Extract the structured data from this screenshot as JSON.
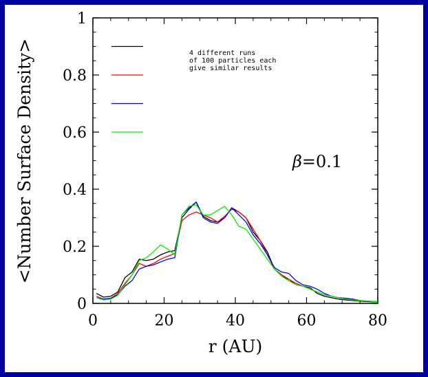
{
  "colors": {
    "border": "#0000a0",
    "background": "#ffffff"
  },
  "chart_data": {
    "type": "line",
    "title": "",
    "xlabel": "r (AU)",
    "ylabel": "<Number Surface Density>",
    "xlim": [
      0,
      80
    ],
    "ylim": [
      0,
      1
    ],
    "xticks": [
      0,
      20,
      40,
      60,
      80
    ],
    "yticks": [
      0,
      0.2,
      0.4,
      0.6,
      0.8,
      1
    ],
    "xtick_labels": [
      "0",
      "20",
      "40",
      "60",
      "80"
    ],
    "ytick_labels": [
      "0",
      "0.2",
      "0.4",
      "0.6",
      "0.8",
      "1"
    ],
    "grid": false,
    "legend_position": "top-left",
    "legend_note": [
      "4 different runs",
      "of 100 particles each",
      "give similar results"
    ],
    "annotation": {
      "symbol": "β",
      "text": "=0.1"
    },
    "x": [
      1,
      3,
      5,
      7,
      9,
      11,
      13,
      15,
      17,
      19,
      21,
      23,
      25,
      27,
      29,
      31,
      33,
      35,
      37,
      39,
      41,
      43,
      45,
      47,
      49,
      51,
      53,
      55,
      57,
      59,
      61,
      63,
      65,
      67,
      69,
      71,
      73,
      75,
      77,
      79,
      80
    ],
    "series": [
      {
        "color": "#000000",
        "values": [
          0.035,
          0.022,
          0.025,
          0.04,
          0.09,
          0.11,
          0.155,
          0.15,
          0.155,
          0.17,
          0.18,
          0.185,
          0.3,
          0.33,
          0.355,
          0.305,
          0.29,
          0.285,
          0.3,
          0.335,
          0.32,
          0.3,
          0.25,
          0.22,
          0.18,
          0.12,
          0.1,
          0.08,
          0.07,
          0.06,
          0.055,
          0.035,
          0.025,
          0.02,
          0.015,
          0.012,
          0.01,
          0.008,
          0.006,
          0.005,
          0.005
        ]
      },
      {
        "color": "#ff0000",
        "values": [
          0.025,
          0.015,
          0.018,
          0.035,
          0.07,
          0.1,
          0.14,
          0.13,
          0.14,
          0.155,
          0.165,
          0.175,
          0.29,
          0.31,
          0.32,
          0.31,
          0.3,
          0.285,
          0.305,
          0.33,
          0.32,
          0.3,
          0.26,
          0.22,
          0.17,
          0.12,
          0.1,
          0.085,
          0.07,
          0.06,
          0.05,
          0.04,
          0.03,
          0.025,
          0.02,
          0.015,
          0.012,
          0.01,
          0.008,
          0.007,
          0.007
        ]
      },
      {
        "color": "#0000ff",
        "values": [
          0.02,
          0.015,
          0.018,
          0.03,
          0.06,
          0.08,
          0.12,
          0.13,
          0.135,
          0.145,
          0.155,
          0.16,
          0.31,
          0.335,
          0.355,
          0.3,
          0.285,
          0.28,
          0.3,
          0.335,
          0.31,
          0.285,
          0.24,
          0.21,
          0.17,
          0.125,
          0.11,
          0.105,
          0.08,
          0.065,
          0.06,
          0.05,
          0.035,
          0.025,
          0.02,
          0.018,
          0.015,
          0.01,
          0.008,
          0.006,
          0.006
        ]
      },
      {
        "color": "#00ee00",
        "values": [
          0.02,
          0.012,
          0.015,
          0.028,
          0.065,
          0.1,
          0.15,
          0.16,
          0.18,
          0.205,
          0.19,
          0.17,
          0.31,
          0.34,
          0.345,
          0.31,
          0.31,
          0.325,
          0.34,
          0.31,
          0.27,
          0.26,
          0.225,
          0.19,
          0.155,
          0.12,
          0.095,
          0.08,
          0.065,
          0.06,
          0.05,
          0.04,
          0.03,
          0.025,
          0.02,
          0.015,
          0.012,
          0.01,
          0.008,
          0.006,
          0.006
        ]
      }
    ]
  }
}
